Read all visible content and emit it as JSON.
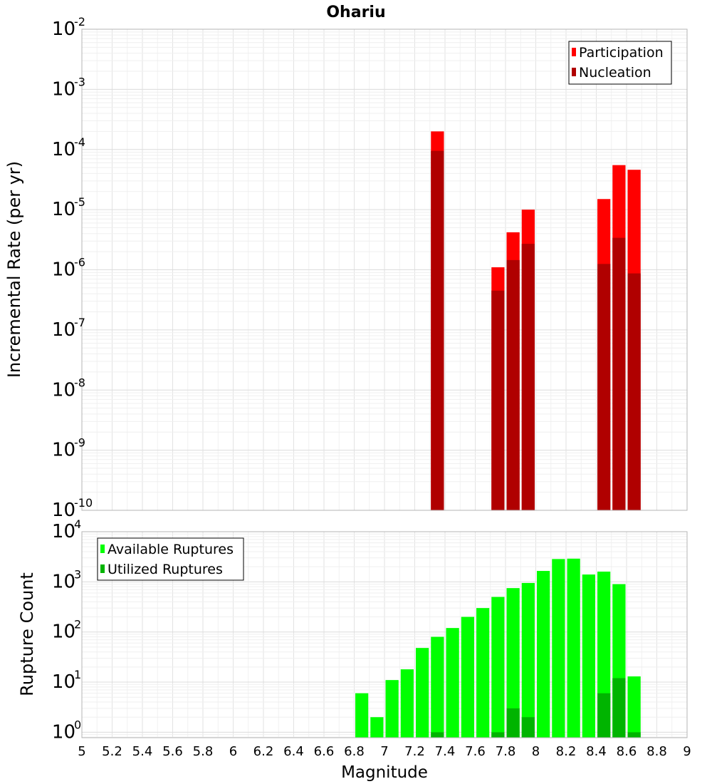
{
  "chart_data": [
    {
      "type": "bar",
      "title": "Ohariu",
      "xlabel": "",
      "ylabel": "Incremental Rate (per yr)",
      "xlim": [
        5,
        9
      ],
      "ylim": [
        1e-10,
        0.01
      ],
      "y_scale": "log",
      "grid": true,
      "legend_position": "top-right",
      "y_ticks": [
        {
          "mantissa": "10",
          "exponent": "-10"
        },
        {
          "mantissa": "10",
          "exponent": "-9"
        },
        {
          "mantissa": "10",
          "exponent": "-8"
        },
        {
          "mantissa": "10",
          "exponent": "-7"
        },
        {
          "mantissa": "10",
          "exponent": "-6"
        },
        {
          "mantissa": "10",
          "exponent": "-5"
        },
        {
          "mantissa": "10",
          "exponent": "-4"
        },
        {
          "mantissa": "10",
          "exponent": "-3"
        },
        {
          "mantissa": "10",
          "exponent": "-2"
        }
      ],
      "bin_width": 0.1,
      "series": [
        {
          "name": "Participation",
          "color": "#ff0000",
          "points": [
            {
              "x": 7.35,
              "y": 0.0002
            },
            {
              "x": 7.75,
              "y": 1.1e-06
            },
            {
              "x": 7.85,
              "y": 4.2e-06
            },
            {
              "x": 7.95,
              "y": 1e-05
            },
            {
              "x": 8.45,
              "y": 1.5e-05
            },
            {
              "x": 8.55,
              "y": 5.5e-05
            },
            {
              "x": 8.65,
              "y": 4.6e-05
            }
          ]
        },
        {
          "name": "Nucleation",
          "color": "#b00000",
          "points": [
            {
              "x": 7.35,
              "y": 9.5e-05
            },
            {
              "x": 7.75,
              "y": 4.5e-07
            },
            {
              "x": 7.85,
              "y": 1.45e-06
            },
            {
              "x": 7.95,
              "y": 2.7e-06
            },
            {
              "x": 8.45,
              "y": 1.25e-06
            },
            {
              "x": 8.55,
              "y": 3.4e-06
            },
            {
              "x": 8.65,
              "y": 8.7e-07
            }
          ]
        }
      ]
    },
    {
      "type": "bar",
      "title": "",
      "xlabel": "Magnitude",
      "ylabel": "Rupture Count",
      "xlim": [
        5,
        9
      ],
      "ylim": [
        0.78,
        10000
      ],
      "y_scale": "log",
      "grid": true,
      "legend_position": "top-left",
      "x_ticks": [
        "5",
        "5.2",
        "5.4",
        "5.6",
        "5.8",
        "6",
        "6.2",
        "6.4",
        "6.6",
        "6.8",
        "7",
        "7.2",
        "7.4",
        "7.6",
        "7.8",
        "8",
        "8.2",
        "8.4",
        "8.6",
        "8.8",
        "9"
      ],
      "y_ticks": [
        {
          "mantissa": "10",
          "exponent": "0"
        },
        {
          "mantissa": "10",
          "exponent": "1"
        },
        {
          "mantissa": "10",
          "exponent": "2"
        },
        {
          "mantissa": "10",
          "exponent": "3"
        },
        {
          "mantissa": "10",
          "exponent": "4"
        }
      ],
      "bin_width": 0.1,
      "series": [
        {
          "name": "Available Ruptures",
          "color": "#00ff00",
          "points": [
            {
              "x": 6.85,
              "y": 6
            },
            {
              "x": 6.95,
              "y": 2
            },
            {
              "x": 7.05,
              "y": 11
            },
            {
              "x": 7.15,
              "y": 18
            },
            {
              "x": 7.25,
              "y": 48
            },
            {
              "x": 7.35,
              "y": 80
            },
            {
              "x": 7.45,
              "y": 120
            },
            {
              "x": 7.55,
              "y": 200
            },
            {
              "x": 7.65,
              "y": 300
            },
            {
              "x": 7.75,
              "y": 500
            },
            {
              "x": 7.85,
              "y": 750
            },
            {
              "x": 7.95,
              "y": 950
            },
            {
              "x": 8.05,
              "y": 1650
            },
            {
              "x": 8.15,
              "y": 2850
            },
            {
              "x": 8.25,
              "y": 2900
            },
            {
              "x": 8.35,
              "y": 1400
            },
            {
              "x": 8.45,
              "y": 1600
            },
            {
              "x": 8.55,
              "y": 900
            },
            {
              "x": 8.65,
              "y": 13
            }
          ]
        },
        {
          "name": "Utilized Ruptures",
          "color": "#00b400",
          "points": [
            {
              "x": 7.35,
              "y": 1
            },
            {
              "x": 7.75,
              "y": 1
            },
            {
              "x": 7.85,
              "y": 3
            },
            {
              "x": 7.95,
              "y": 2
            },
            {
              "x": 8.45,
              "y": 6
            },
            {
              "x": 8.55,
              "y": 12
            },
            {
              "x": 8.65,
              "y": 1
            }
          ]
        }
      ]
    }
  ]
}
